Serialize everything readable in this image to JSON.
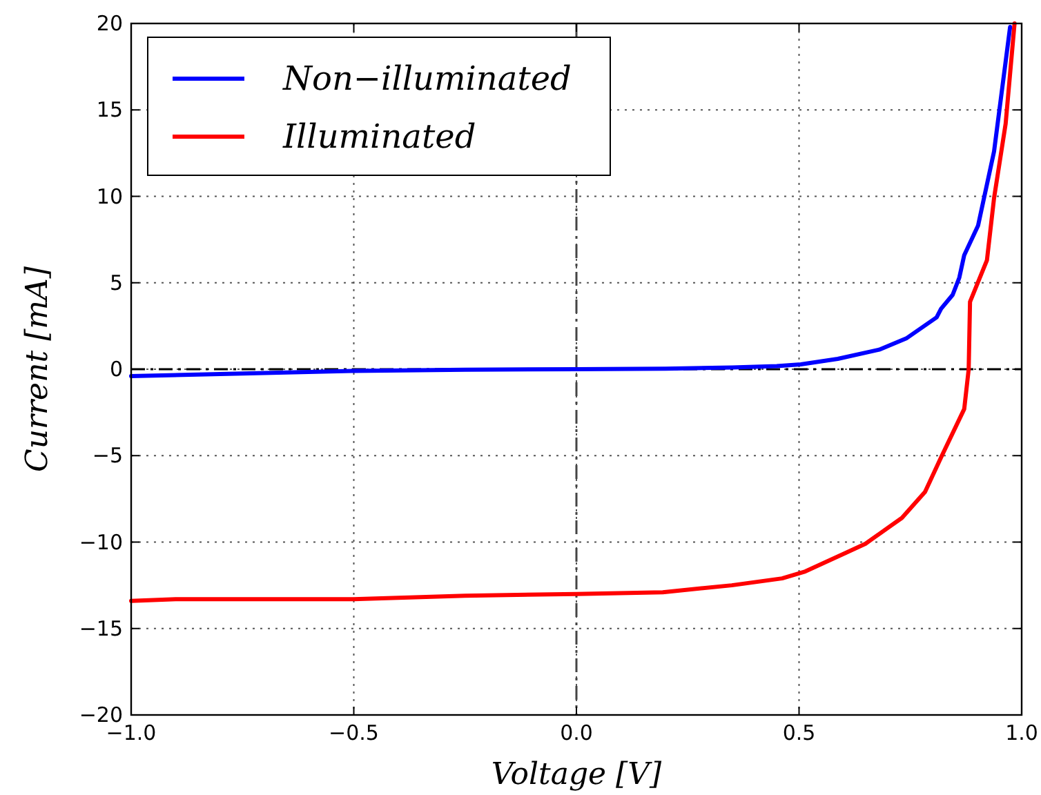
{
  "chart_data": {
    "type": "line",
    "xlabel": "Voltage [V]",
    "ylabel": "Current [mA]",
    "xlim": [
      -1,
      1
    ],
    "ylim": [
      -20,
      20
    ],
    "xticks": [
      {
        "value": -1,
        "label": "−1.0"
      },
      {
        "value": -0.5,
        "label": "−0.5"
      },
      {
        "value": 0,
        "label": "0.0"
      },
      {
        "value": 0.5,
        "label": "0.5"
      },
      {
        "value": 1,
        "label": "1.0"
      }
    ],
    "yticks": [
      {
        "value": -20,
        "label": "−20"
      },
      {
        "value": -15,
        "label": "−15"
      },
      {
        "value": -10,
        "label": "−10"
      },
      {
        "value": -5,
        "label": "−5"
      },
      0,
      5,
      10,
      15,
      20
    ],
    "grid": true,
    "legend": "top left",
    "line_style": "solid",
    "marker": "none",
    "ref_lines": [
      {
        "axis": "y",
        "value": 0,
        "color": "#000000",
        "line_style": "dashed"
      },
      {
        "axis": "x",
        "value": 0,
        "color": "#444444",
        "line_style": "dashed"
      }
    ],
    "series": [
      {
        "name": "Non−illuminated",
        "color": "#0000ff",
        "x": [
          -1,
          -0.75,
          -0.5,
          -0.25,
          0,
          0.2,
          0.35,
          0.45,
          0.504,
          0.587,
          0.68,
          0.742,
          0.809,
          0.819,
          0.845,
          0.86,
          0.871,
          0.902,
          0.938,
          0.974
        ],
        "values": [
          -0.4,
          -0.25,
          -0.1,
          -0.03,
          0,
          0.03,
          0.1,
          0.18,
          0.28,
          0.6,
          1.13,
          1.8,
          3.0,
          3.5,
          4.3,
          5.3,
          6.6,
          8.3,
          12.6,
          19.8
        ]
      },
      {
        "name": "Illuminated",
        "color": "#ff0000",
        "x": [
          -1,
          -0.9,
          -0.75,
          -0.5,
          -0.25,
          0,
          0.194,
          0.349,
          0.462,
          0.514,
          0.607,
          0.649,
          0.731,
          0.783,
          0.819,
          0.871,
          0.881,
          0.884,
          0.922,
          0.938,
          0.964,
          0.984
        ],
        "values": [
          -13.4,
          -13.3,
          -13.3,
          -13.3,
          -13.1,
          -13.0,
          -12.9,
          -12.5,
          -12.1,
          -11.7,
          -10.6,
          -10.1,
          -8.6,
          -7.1,
          -5.1,
          -2.3,
          0,
          3.9,
          6.3,
          9.9,
          14.2,
          20
        ]
      }
    ]
  }
}
